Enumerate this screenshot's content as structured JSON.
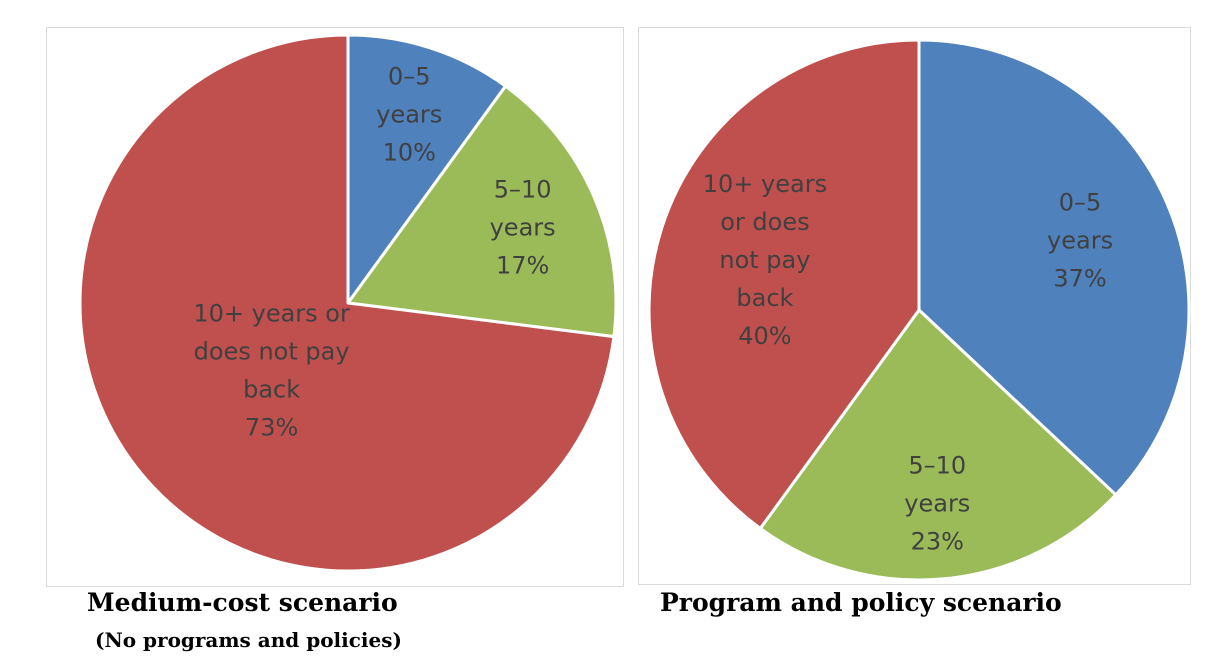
{
  "chart_data": [
    {
      "type": "pie",
      "title": "Medium-cost scenario",
      "subtitle": "(No programs and policies)",
      "slices": [
        {
          "name": "0–5 years",
          "label_lines": [
            "0–5",
            "years",
            "10%"
          ],
          "value": 10,
          "color": "#4f81bd"
        },
        {
          "name": "5–10 years",
          "label_lines": [
            "5–10",
            "years",
            "17%"
          ],
          "value": 17,
          "color": "#9bbb59"
        },
        {
          "name": "10+ years or does not pay back",
          "label_lines": [
            "10+ years or",
            "does not pay",
            "back",
            "73%"
          ],
          "value": 73,
          "color": "#c0504d"
        }
      ]
    },
    {
      "type": "pie",
      "title": "Program and policy scenario",
      "slices": [
        {
          "name": "0–5 years",
          "label_lines": [
            "0–5",
            "years",
            "37%"
          ],
          "value": 37,
          "color": "#4f81bd"
        },
        {
          "name": "5–10 years",
          "label_lines": [
            "5–10",
            "years",
            "23%"
          ],
          "value": 23,
          "color": "#9bbb59"
        },
        {
          "name": "10+ years or does not pay back",
          "label_lines": [
            "10+ years",
            "or does",
            "not pay",
            "back",
            "40%"
          ],
          "value": 40,
          "color": "#c0504d"
        }
      ]
    }
  ]
}
